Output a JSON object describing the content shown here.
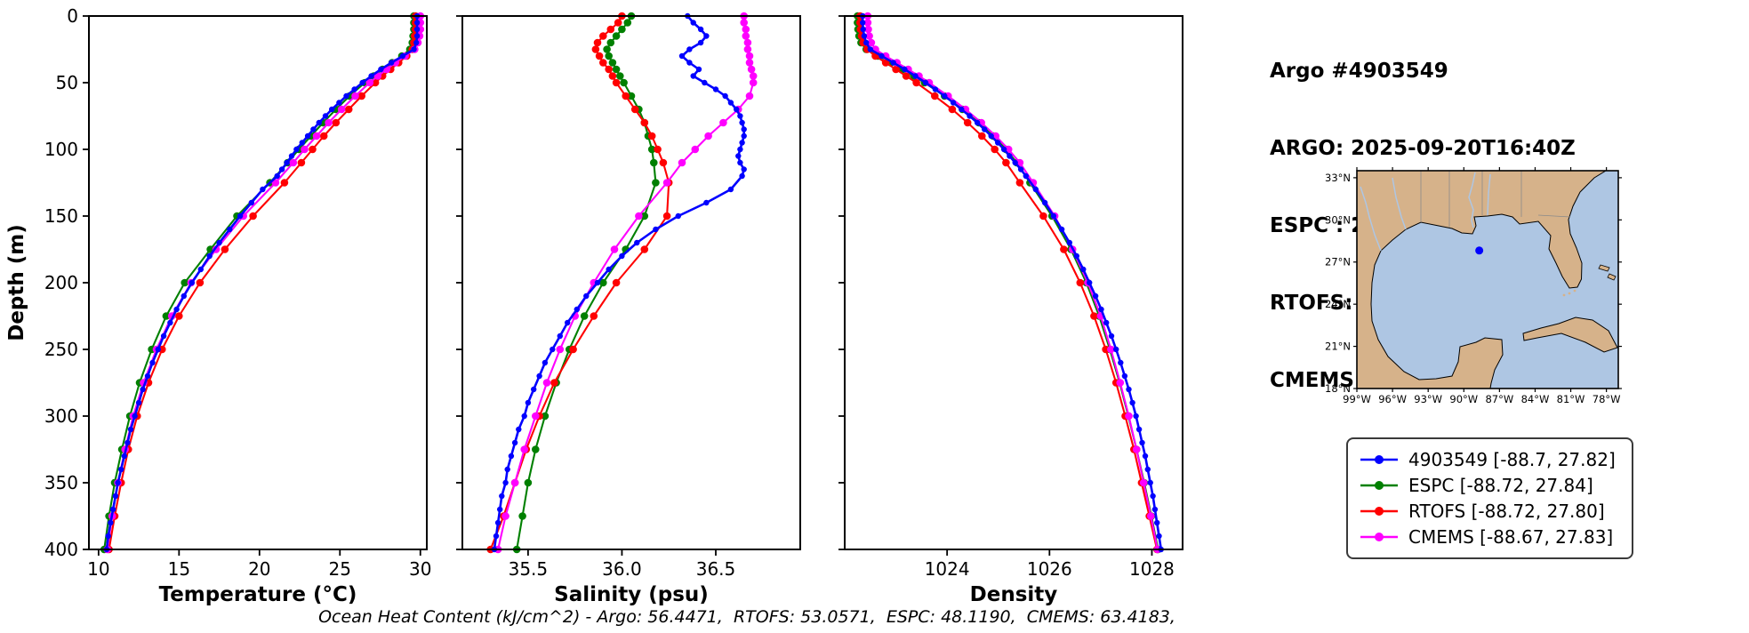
{
  "header": {
    "title": "Argo #4903549",
    "lines": [
      "ARGO: 2025-09-20T16:40Z",
      "ESPC : 2025-09-20T18:00Z",
      "RTOFS: 2025-09-20T18:00Z",
      "CMEMS: 2025-09-20T18:00Z"
    ]
  },
  "footer": "Ocean Heat Content (kJ/cm^2) - Argo: 56.4471,  RTOFS: 53.0571,  ESPC: 48.1190,  CMEMS: 63.4183,",
  "colors": {
    "argo": "#0000ff",
    "espc": "#008000",
    "rtofs": "#ff0000",
    "cmems": "#ff00ff",
    "land": "#d6b28a",
    "water": "#aec6e3",
    "frame": "#000000"
  },
  "legend": {
    "items": [
      {
        "label": "4903549 [-88.7, 27.82]",
        "color_key": "argo"
      },
      {
        "label": "ESPC [-88.72, 27.84]",
        "color_key": "espc"
      },
      {
        "label": "RTOFS [-88.72, 27.80]",
        "color_key": "rtofs"
      },
      {
        "label": "CMEMS [-88.67, 27.83]",
        "color_key": "cmems"
      }
    ]
  },
  "map": {
    "extent": {
      "lon_min": -99,
      "lon_max": -77,
      "lat_min": 18,
      "lat_max": 33.5
    },
    "marker": {
      "lon": -88.7,
      "lat": 27.82
    },
    "lon_ticks": [
      {
        "v": -99,
        "label": "99°W"
      },
      {
        "v": -96,
        "label": "96°W"
      },
      {
        "v": -93,
        "label": "93°W"
      },
      {
        "v": -90,
        "label": "90°W"
      },
      {
        "v": -87,
        "label": "87°W"
      },
      {
        "v": -84,
        "label": "84°W"
      },
      {
        "v": -81,
        "label": "81°W"
      },
      {
        "v": -78,
        "label": "78°W"
      }
    ],
    "lat_ticks": [
      {
        "v": 18,
        "label": "18°N"
      },
      {
        "v": 21,
        "label": "21°N"
      },
      {
        "v": 24,
        "label": "24°N"
      },
      {
        "v": 27,
        "label": "27°N"
      },
      {
        "v": 30,
        "label": "30°N"
      },
      {
        "v": 33,
        "label": "33°N"
      }
    ]
  },
  "depths": {
    "argo": [
      0,
      5,
      10,
      15,
      20,
      25,
      30,
      35,
      40,
      45,
      50,
      55,
      60,
      65,
      70,
      75,
      80,
      85,
      90,
      95,
      100,
      105,
      110,
      115,
      120,
      130,
      140,
      150,
      160,
      170,
      180,
      190,
      200,
      210,
      220,
      230,
      240,
      250,
      260,
      270,
      280,
      290,
      300,
      310,
      320,
      330,
      340,
      350,
      360,
      370,
      380,
      390,
      400
    ],
    "model": [
      0,
      5,
      10,
      15,
      20,
      25,
      30,
      35,
      40,
      45,
      50,
      60,
      70,
      80,
      90,
      100,
      110,
      125,
      150,
      175,
      200,
      225,
      250,
      275,
      300,
      325,
      350,
      375,
      400
    ]
  },
  "chart_data": [
    {
      "id": "temperature",
      "type": "line",
      "xlabel": "Temperature (°C)",
      "ylabel": "Depth (m)",
      "xlim": [
        9.4,
        30.4
      ],
      "ylim": [
        0,
        400
      ],
      "xticks": [
        {
          "v": 10,
          "label": "10"
        },
        {
          "v": 15,
          "label": "15"
        },
        {
          "v": 20,
          "label": "20"
        },
        {
          "v": 25,
          "label": "25"
        },
        {
          "v": 30,
          "label": "30"
        }
      ],
      "yticks": [
        {
          "v": 0,
          "label": "0"
        },
        {
          "v": 50,
          "label": "50"
        },
        {
          "v": 100,
          "label": "100"
        },
        {
          "v": 150,
          "label": "150"
        },
        {
          "v": 200,
          "label": "200"
        },
        {
          "v": 250,
          "label": "250"
        },
        {
          "v": 300,
          "label": "300"
        },
        {
          "v": 350,
          "label": "350"
        },
        {
          "v": 400,
          "label": "400"
        }
      ],
      "series": [
        {
          "name": "4903549",
          "color_key": "argo",
          "depths_key": "argo",
          "values": [
            29.8,
            29.8,
            29.8,
            29.8,
            29.75,
            29.6,
            28.9,
            28.2,
            27.55,
            26.95,
            26.4,
            25.9,
            25.4,
            24.95,
            24.5,
            24.1,
            23.7,
            23.35,
            23.0,
            22.65,
            22.3,
            22.0,
            21.7,
            21.4,
            21.1,
            20.2,
            19.5,
            18.8,
            18.15,
            17.5,
            16.9,
            16.35,
            15.8,
            15.3,
            14.85,
            14.45,
            14.05,
            13.7,
            13.35,
            13.05,
            12.75,
            12.5,
            12.25,
            12.0,
            11.8,
            11.6,
            11.4,
            11.2,
            11.05,
            10.9,
            10.75,
            10.6,
            10.5
          ]
        },
        {
          "name": "ESPC",
          "color_key": "espc",
          "depths_key": "model",
          "values": [
            29.6,
            29.6,
            29.6,
            29.55,
            29.5,
            29.35,
            28.85,
            28.25,
            27.65,
            27.1,
            26.55,
            25.6,
            24.75,
            23.95,
            23.2,
            22.45,
            21.75,
            20.65,
            18.6,
            16.95,
            15.35,
            14.2,
            13.3,
            12.55,
            11.95,
            11.45,
            11.0,
            10.65,
            10.35
          ]
        },
        {
          "name": "RTOFS",
          "color_key": "rtofs",
          "depths_key": "model",
          "values": [
            29.7,
            29.7,
            29.7,
            29.65,
            29.6,
            29.5,
            29.15,
            28.65,
            28.15,
            27.65,
            27.2,
            26.35,
            25.55,
            24.75,
            24.0,
            23.3,
            22.6,
            21.55,
            19.6,
            17.85,
            16.3,
            15.0,
            13.95,
            13.1,
            12.4,
            11.85,
            11.4,
            11.0,
            10.65
          ]
        },
        {
          "name": "CMEMS",
          "color_key": "cmems",
          "depths_key": "model",
          "values": [
            30.0,
            30.0,
            30.0,
            29.95,
            29.85,
            29.65,
            29.05,
            28.45,
            27.9,
            27.35,
            26.85,
            25.95,
            25.1,
            24.3,
            23.55,
            22.8,
            22.1,
            21.0,
            19.0,
            17.3,
            15.75,
            14.55,
            13.6,
            12.8,
            12.15,
            11.65,
            11.2,
            10.85,
            10.55
          ]
        }
      ]
    },
    {
      "id": "salinity",
      "type": "line",
      "xlabel": "Salinity (psu)",
      "ylabel": "",
      "xlim": [
        35.15,
        36.95
      ],
      "ylim": [
        0,
        400
      ],
      "xticks": [
        {
          "v": 35.5,
          "label": "35.5"
        },
        {
          "v": 36.0,
          "label": "36.0"
        },
        {
          "v": 36.5,
          "label": "36.5"
        }
      ],
      "yticks": [],
      "series": [
        {
          "name": "4903549",
          "color_key": "argo",
          "depths_key": "argo",
          "values": [
            36.35,
            36.38,
            36.42,
            36.45,
            36.42,
            36.36,
            36.32,
            36.36,
            36.41,
            36.38,
            36.44,
            36.5,
            36.55,
            36.58,
            36.61,
            36.63,
            36.64,
            36.65,
            36.65,
            36.64,
            36.63,
            36.62,
            36.63,
            36.65,
            36.64,
            36.58,
            36.45,
            36.3,
            36.18,
            36.08,
            36.0,
            35.93,
            35.87,
            35.81,
            35.76,
            35.71,
            35.67,
            35.63,
            35.59,
            35.56,
            35.53,
            35.5,
            35.48,
            35.45,
            35.43,
            35.41,
            35.39,
            35.38,
            35.36,
            35.35,
            35.34,
            35.33,
            35.32
          ]
        },
        {
          "name": "ESPC",
          "color_key": "espc",
          "depths_key": "model",
          "values": [
            36.05,
            36.03,
            36.0,
            35.97,
            35.94,
            35.92,
            35.93,
            35.95,
            35.97,
            35.99,
            36.01,
            36.05,
            36.09,
            36.12,
            36.14,
            36.16,
            36.17,
            36.18,
            36.12,
            36.02,
            35.9,
            35.8,
            35.72,
            35.65,
            35.59,
            35.54,
            35.5,
            35.47,
            35.44
          ]
        },
        {
          "name": "RTOFS",
          "color_key": "rtofs",
          "depths_key": "model",
          "values": [
            36.0,
            35.98,
            35.94,
            35.9,
            35.87,
            35.86,
            35.88,
            35.9,
            35.93,
            35.95,
            35.97,
            36.02,
            36.07,
            36.12,
            36.16,
            36.19,
            36.22,
            36.25,
            36.24,
            36.12,
            35.97,
            35.85,
            35.74,
            35.64,
            35.56,
            35.49,
            35.43,
            35.37,
            35.3
          ]
        },
        {
          "name": "CMEMS",
          "color_key": "cmems",
          "depths_key": "model",
          "values": [
            36.65,
            36.65,
            36.66,
            36.66,
            36.67,
            36.67,
            36.68,
            36.68,
            36.69,
            36.7,
            36.7,
            36.68,
            36.62,
            36.54,
            36.46,
            36.39,
            36.32,
            36.24,
            36.09,
            35.96,
            35.85,
            35.75,
            35.67,
            35.6,
            35.54,
            35.48,
            35.43,
            35.38,
            35.34
          ]
        }
      ]
    },
    {
      "id": "density",
      "type": "line",
      "xlabel": "Density",
      "ylabel": "",
      "xlim": [
        1022.0,
        1028.6
      ],
      "ylim": [
        0,
        400
      ],
      "xticks": [
        {
          "v": 1024,
          "label": "1024"
        },
        {
          "v": 1026,
          "label": "1026"
        },
        {
          "v": 1028,
          "label": "1028"
        }
      ],
      "yticks": [],
      "series": [
        {
          "name": "4903549",
          "color_key": "argo",
          "depths_key": "argo",
          "values": [
            1022.35,
            1022.35,
            1022.36,
            1022.38,
            1022.42,
            1022.5,
            1022.72,
            1022.95,
            1023.17,
            1023.38,
            1023.58,
            1023.77,
            1023.95,
            1024.12,
            1024.28,
            1024.44,
            1024.59,
            1024.73,
            1024.86,
            1024.99,
            1025.11,
            1025.22,
            1025.33,
            1025.44,
            1025.54,
            1025.73,
            1025.91,
            1026.08,
            1026.24,
            1026.39,
            1026.53,
            1026.66,
            1026.78,
            1026.9,
            1027.01,
            1027.11,
            1027.21,
            1027.3,
            1027.39,
            1027.47,
            1027.55,
            1027.62,
            1027.69,
            1027.75,
            1027.81,
            1027.87,
            1027.92,
            1027.97,
            1028.02,
            1028.06,
            1028.1,
            1028.14,
            1028.18
          ]
        },
        {
          "name": "ESPC",
          "color_key": "espc",
          "depths_key": "model",
          "values": [
            1022.25,
            1022.25,
            1022.26,
            1022.28,
            1022.32,
            1022.42,
            1022.65,
            1022.9,
            1023.13,
            1023.35,
            1023.56,
            1023.95,
            1024.3,
            1024.62,
            1024.9,
            1025.15,
            1025.36,
            1025.62,
            1026.05,
            1026.42,
            1026.72,
            1026.97,
            1027.18,
            1027.37,
            1027.54,
            1027.7,
            1027.85,
            1027.99,
            1028.12
          ]
        },
        {
          "name": "RTOFS",
          "color_key": "rtofs",
          "depths_key": "model",
          "values": [
            1022.3,
            1022.3,
            1022.31,
            1022.33,
            1022.36,
            1022.44,
            1022.6,
            1022.8,
            1023.0,
            1023.2,
            1023.4,
            1023.76,
            1024.1,
            1024.4,
            1024.68,
            1024.93,
            1025.15,
            1025.42,
            1025.88,
            1026.28,
            1026.6,
            1026.87,
            1027.1,
            1027.3,
            1027.48,
            1027.65,
            1027.8,
            1027.95,
            1028.1
          ]
        },
        {
          "name": "CMEMS",
          "color_key": "cmems",
          "depths_key": "model",
          "values": [
            1022.45,
            1022.45,
            1022.46,
            1022.48,
            1022.52,
            1022.6,
            1022.8,
            1023.02,
            1023.24,
            1023.45,
            1023.65,
            1024.02,
            1024.36,
            1024.67,
            1024.95,
            1025.2,
            1025.42,
            1025.68,
            1026.1,
            1026.45,
            1026.75,
            1027.0,
            1027.2,
            1027.38,
            1027.55,
            1027.7,
            1027.84,
            1027.98,
            1028.11
          ]
        }
      ]
    }
  ]
}
